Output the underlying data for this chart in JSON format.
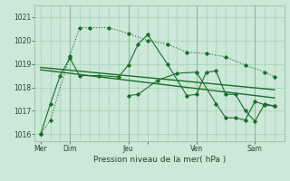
{
  "xlabel": "Pression niveau de la mer( hPa )",
  "bg_color": "#cce8d8",
  "grid_color": "#99ccb0",
  "line_color": "#1a6e2a",
  "dark_line_color": "#1a5e22",
  "ylim": [
    1015.7,
    1021.5
  ],
  "yticks": [
    1016,
    1017,
    1018,
    1019,
    1020,
    1021
  ],
  "xlim": [
    -0.3,
    12.5
  ],
  "vlines_dark": [
    1.5,
    4.5,
    8.0,
    11.0
  ],
  "s1_x": [
    0,
    0.5,
    1.5,
    2.0,
    2.5,
    3.5,
    4.5,
    5.5,
    6.5,
    7.5,
    8.5,
    9.5,
    10.5,
    11.5,
    12.0
  ],
  "s1_y": [
    1016.0,
    1016.6,
    1019.35,
    1020.55,
    1020.55,
    1020.55,
    1020.3,
    1020.0,
    1019.85,
    1019.5,
    1019.45,
    1019.3,
    1018.95,
    1018.65,
    1018.45
  ],
  "s2_x": [
    0,
    0.5,
    1.0,
    1.5,
    2.0,
    3.0,
    4.0,
    4.5,
    5.0,
    5.5,
    6.5,
    7.5,
    8.0,
    8.5,
    9.0,
    9.5,
    10.0,
    10.5,
    11.0,
    11.5,
    12.0
  ],
  "s2_y": [
    1016.0,
    1017.3,
    1018.5,
    1019.25,
    1018.5,
    1018.5,
    1018.45,
    1018.95,
    1019.85,
    1020.25,
    1019.0,
    1017.65,
    1017.7,
    1018.65,
    1018.7,
    1017.7,
    1017.7,
    1017.0,
    1016.55,
    1017.3,
    1017.2
  ],
  "trend1_x": [
    0,
    12
  ],
  "trend1_y": [
    1018.85,
    1017.9
  ],
  "trend2_x": [
    0,
    12
  ],
  "trend2_y": [
    1018.75,
    1017.55
  ],
  "s5_x": [
    4.5,
    5.0,
    6.0,
    7.0,
    8.0,
    9.0,
    9.5,
    10.0,
    10.5,
    11.0,
    11.5,
    12.0
  ],
  "s5_y": [
    1017.65,
    1017.7,
    1018.3,
    1018.6,
    1018.65,
    1017.3,
    1016.7,
    1016.7,
    1016.6,
    1017.4,
    1017.25,
    1017.2
  ],
  "xtick_pos": [
    0,
    1.5,
    4.5,
    5.5,
    8.0,
    11.0
  ],
  "xtick_labels": [
    "Mer",
    "Dim",
    "Jeu",
    "",
    "Ven",
    "Sam"
  ]
}
